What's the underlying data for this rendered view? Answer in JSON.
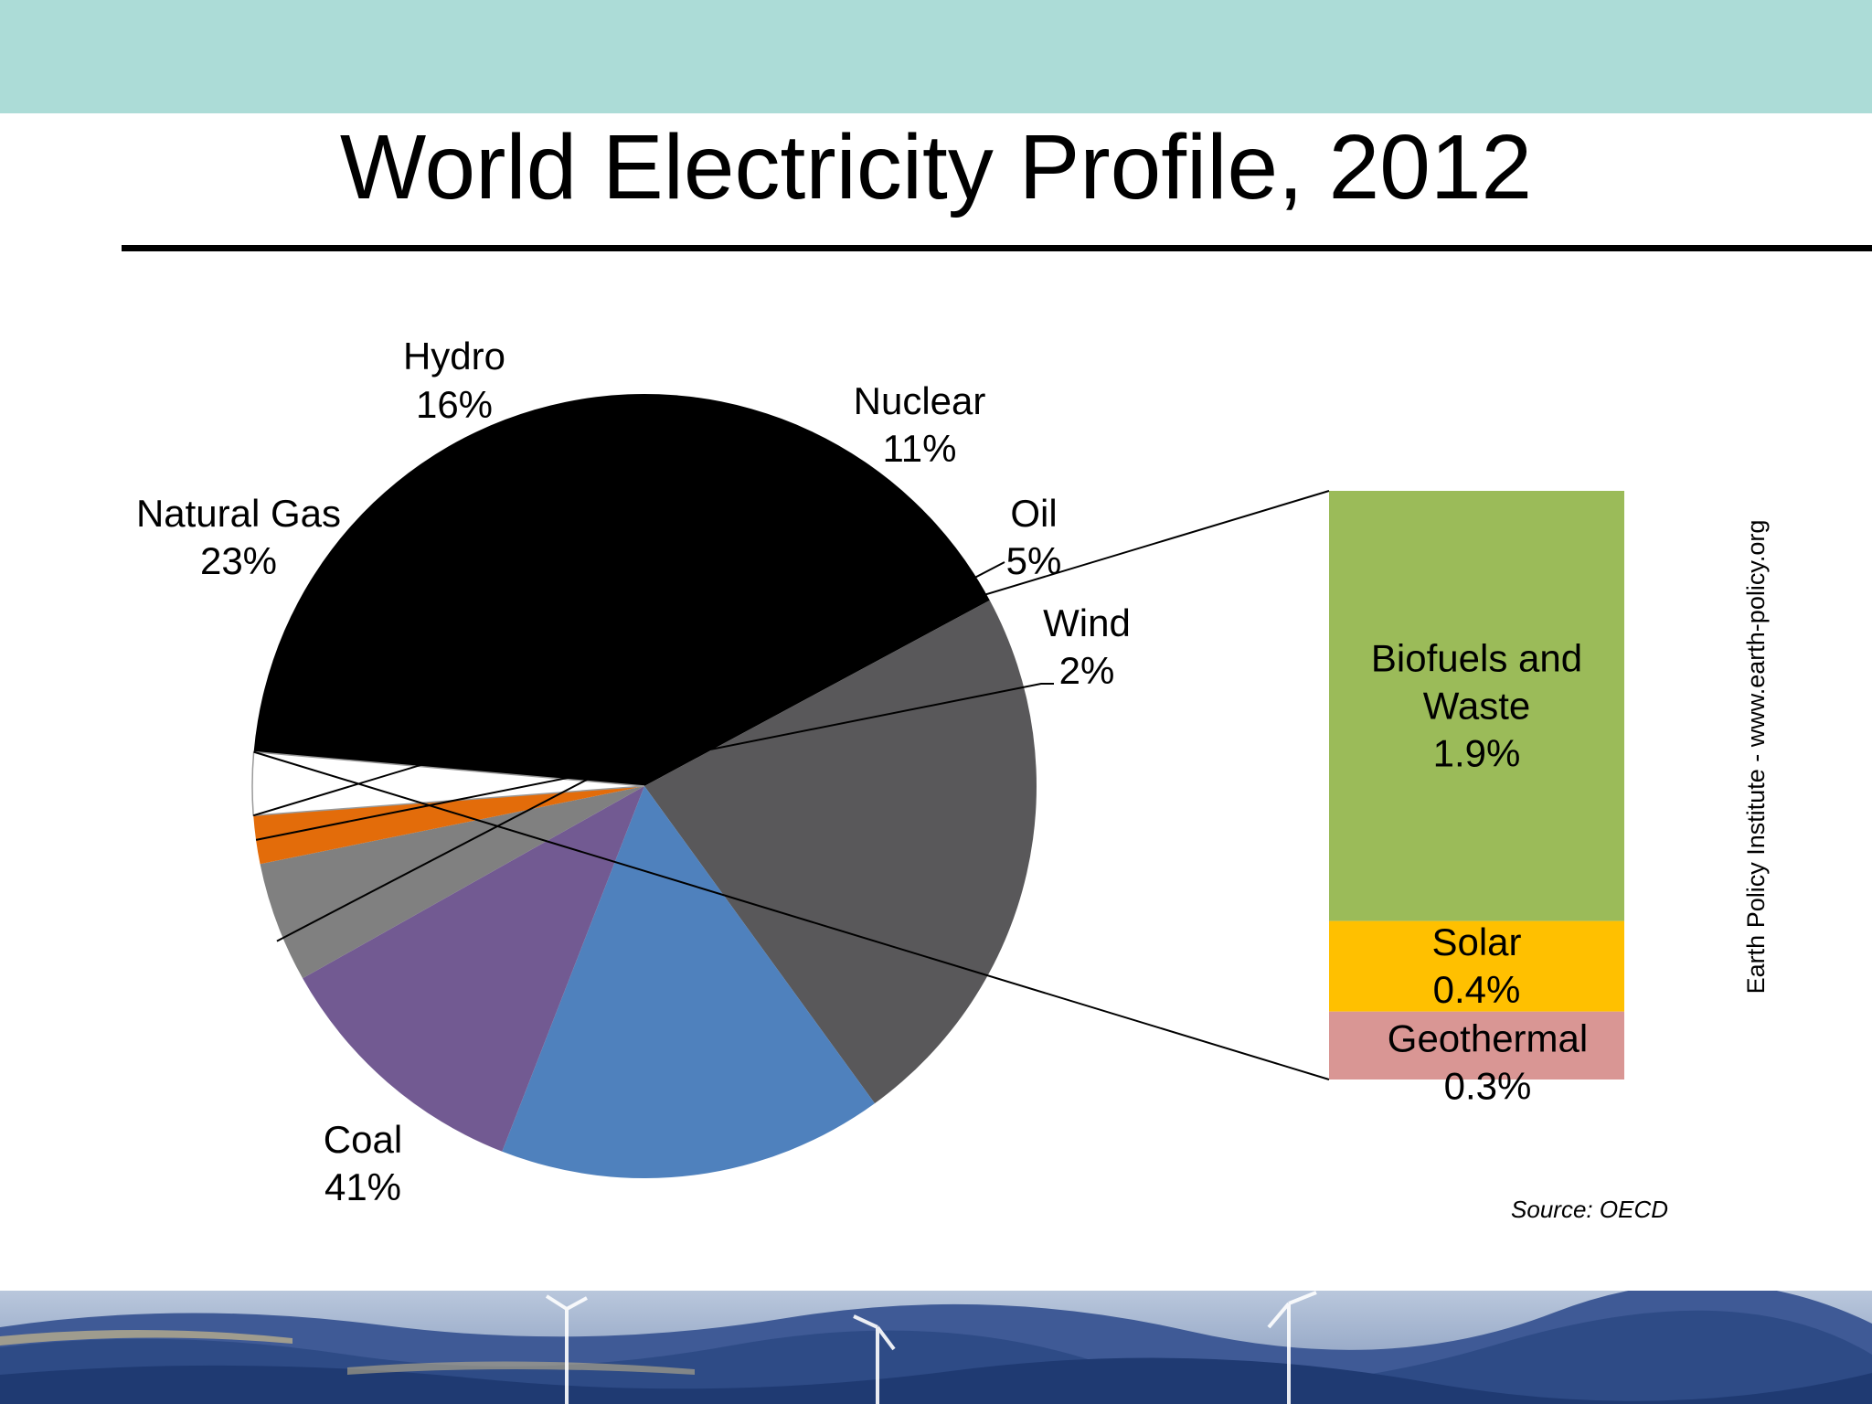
{
  "page": {
    "title": "World Electricity Profile, 2012",
    "source": "Source: OECD",
    "credit": "Earth Policy Institute - www.earth-policy.org"
  },
  "colors": {
    "top_band": "#acdcd7",
    "coal": "#000000",
    "natural_gas": "#59585a",
    "hydro": "#4f81bd",
    "nuclear": "#725a92",
    "oil": "#808080",
    "wind": "#e36c0a",
    "other": "#ffffff",
    "biofuels": "#9bbb59",
    "solar": "#ffc000",
    "geothermal": "#d99694"
  },
  "chart_data": [
    {
      "type": "pie",
      "slices": [
        {
          "key": "coal",
          "label": "Coal",
          "value_label": "41%",
          "value": 41
        },
        {
          "key": "natural_gas",
          "label": "Natural Gas",
          "value_label": "23%",
          "value": 23
        },
        {
          "key": "hydro",
          "label": "Hydro",
          "value_label": "16%",
          "value": 16
        },
        {
          "key": "nuclear",
          "label": "Nuclear",
          "value_label": "11%",
          "value": 11
        },
        {
          "key": "oil",
          "label": "Oil",
          "value_label": "5%",
          "value": 5
        },
        {
          "key": "wind",
          "label": "Wind",
          "value_label": "2%",
          "value": 2
        },
        {
          "key": "other",
          "label": "",
          "value_label": "",
          "value": 2.6
        }
      ]
    },
    {
      "type": "bar",
      "stacked": true,
      "segments": [
        {
          "key": "biofuels",
          "label_lines": [
            "Biofuels and",
            "Waste",
            "1.9%"
          ],
          "value": 1.9
        },
        {
          "key": "solar",
          "label_lines": [
            "Solar",
            "0.4%"
          ],
          "value": 0.4
        },
        {
          "key": "geothermal",
          "label_lines": [
            "Geothermal",
            "0.3%"
          ],
          "value": 0.3
        }
      ]
    }
  ]
}
